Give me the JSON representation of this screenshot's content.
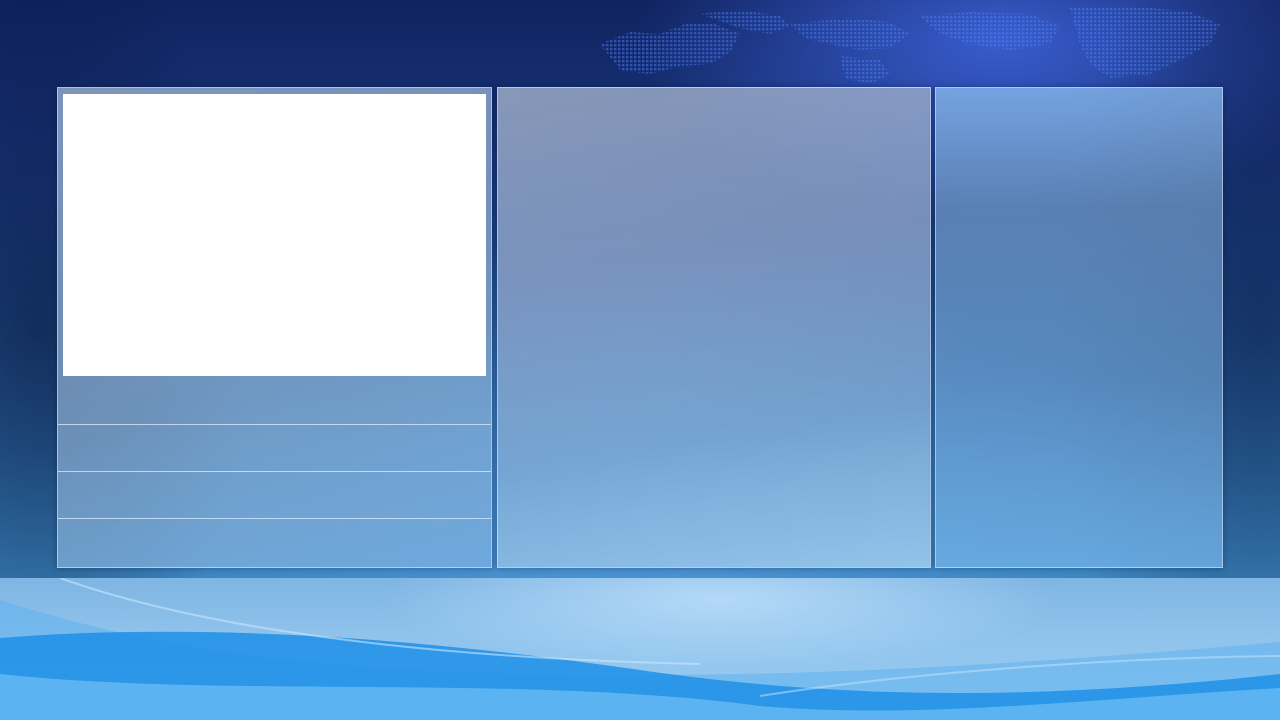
{
  "colors": {
    "background_top": "#10235f",
    "background_bottom": "#4b98d0",
    "wave_primary": "#1e8fe6",
    "wave_light": "#6fc0f5",
    "panel_border": "#dcebff",
    "image_area": "#ffffff"
  },
  "left_panel": {
    "rows": [
      {
        "label": ""
      },
      {
        "label": ""
      },
      {
        "label": ""
      },
      {
        "label": ""
      }
    ]
  },
  "center_panel": {},
  "right_panel": {}
}
